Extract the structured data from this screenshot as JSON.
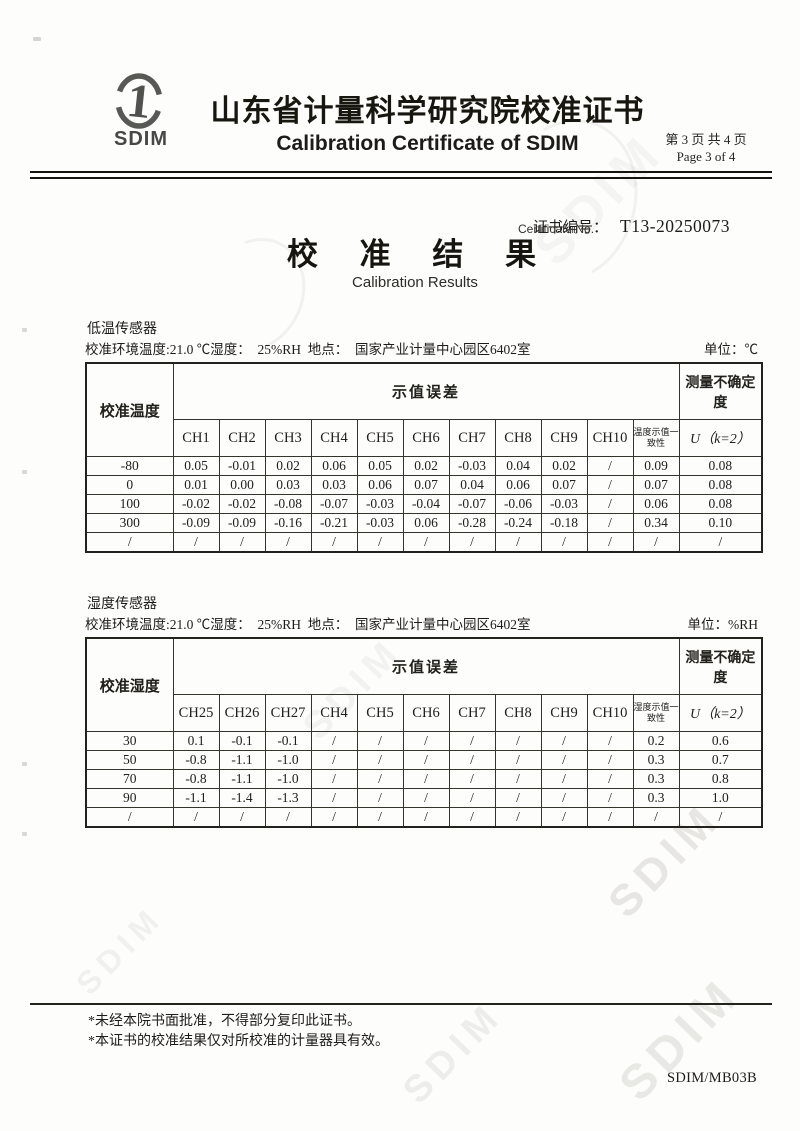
{
  "header": {
    "logo_text": "SDIM",
    "title_zh": "山东省计量科学研究院校准证书",
    "title_en": "Calibration Certificate of SDIM",
    "page_number_zh": "第 3 页 共 4 页",
    "page_number_en": "Page 3 of 4"
  },
  "certificate": {
    "number_label_zh": "证书编号：",
    "number": "T13-20250073",
    "number_label_en": "Certificate No."
  },
  "results_title": {
    "zh": "校 准 结 果",
    "en": "Calibration Results"
  },
  "tables": [
    {
      "sensor_name": "低温传感器",
      "env_line": "校准环境温度:21.0 ℃湿度：  25%RH  地点：  国家产业计量中心园区6402室",
      "unit_label": "单位：℃",
      "point_header": "校准温度",
      "group_header": "示值误差",
      "uncertainty_header": "测量不确定度",
      "channels": [
        "CH1",
        "CH2",
        "CH3",
        "CH4",
        "CH5",
        "CH6",
        "CH7",
        "CH8",
        "CH9",
        "CH10"
      ],
      "consistency_header": "温度示值一致性",
      "u_label": "U（k=2）",
      "rows": [
        {
          "point": "-80",
          "values": [
            "0.05",
            "-0.01",
            "0.02",
            "0.06",
            "0.05",
            "0.02",
            "-0.03",
            "0.04",
            "0.02",
            "/"
          ],
          "consistency": "0.09",
          "u": "0.08"
        },
        {
          "point": "0",
          "values": [
            "0.01",
            "0.00",
            "0.03",
            "0.03",
            "0.06",
            "0.07",
            "0.04",
            "0.06",
            "0.07",
            "/"
          ],
          "consistency": "0.07",
          "u": "0.08"
        },
        {
          "point": "100",
          "values": [
            "-0.02",
            "-0.02",
            "-0.08",
            "-0.07",
            "-0.03",
            "-0.04",
            "-0.07",
            "-0.06",
            "-0.03",
            "/"
          ],
          "consistency": "0.06",
          "u": "0.08"
        },
        {
          "point": "300",
          "values": [
            "-0.09",
            "-0.09",
            "-0.16",
            "-0.21",
            "-0.03",
            "0.06",
            "-0.28",
            "-0.24",
            "-0.18",
            "/"
          ],
          "consistency": "0.34",
          "u": "0.10"
        },
        {
          "point": "/",
          "values": [
            "/",
            "/",
            "/",
            "/",
            "/",
            "/",
            "/",
            "/",
            "/",
            "/"
          ],
          "consistency": "/",
          "u": "/"
        }
      ]
    },
    {
      "sensor_name": "湿度传感器",
      "env_line": "校准环境温度:21.0 ℃湿度：  25%RH  地点：  国家产业计量中心园区6402室",
      "unit_label": "单位：%RH",
      "point_header": "校准湿度",
      "group_header": "示值误差",
      "uncertainty_header": "测量不确定度",
      "channels": [
        "CH25",
        "CH26",
        "CH27",
        "CH4",
        "CH5",
        "CH6",
        "CH7",
        "CH8",
        "CH9",
        "CH10"
      ],
      "consistency_header": "湿度示值一致性",
      "u_label": "U（k=2）",
      "rows": [
        {
          "point": "30",
          "values": [
            "0.1",
            "-0.1",
            "-0.1",
            "/",
            "/",
            "/",
            "/",
            "/",
            "/",
            "/"
          ],
          "consistency": "0.2",
          "u": "0.6"
        },
        {
          "point": "50",
          "values": [
            "-0.8",
            "-1.1",
            "-1.0",
            "/",
            "/",
            "/",
            "/",
            "/",
            "/",
            "/"
          ],
          "consistency": "0.3",
          "u": "0.7"
        },
        {
          "point": "70",
          "values": [
            "-0.8",
            "-1.1",
            "-1.0",
            "/",
            "/",
            "/",
            "/",
            "/",
            "/",
            "/"
          ],
          "consistency": "0.3",
          "u": "0.8"
        },
        {
          "point": "90",
          "values": [
            "-1.1",
            "-1.4",
            "-1.3",
            "/",
            "/",
            "/",
            "/",
            "/",
            "/",
            "/"
          ],
          "consistency": "0.3",
          "u": "1.0"
        },
        {
          "point": "/",
          "values": [
            "/",
            "/",
            "/",
            "/",
            "/",
            "/",
            "/",
            "/",
            "/",
            "/"
          ],
          "consistency": "/",
          "u": "/"
        }
      ]
    }
  ],
  "footer": {
    "note1": "*未经本院书面批准，不得部分复印此证书。",
    "note2": "*本证书的校准结果仅对所校准的计量器具有效。",
    "form_code": "SDIM/MB03B"
  },
  "watermark_text": "SDIM"
}
